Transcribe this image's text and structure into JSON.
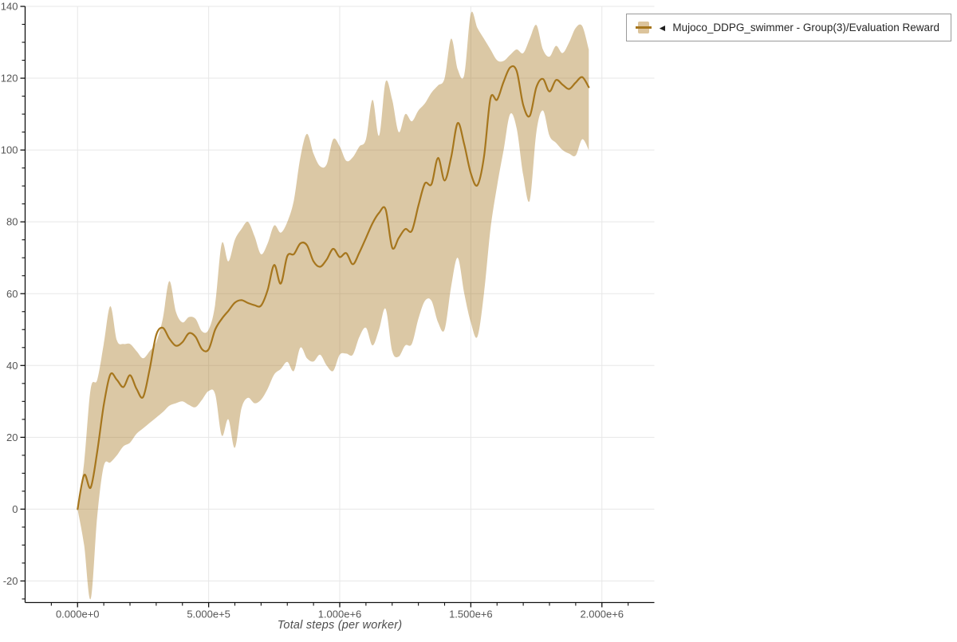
{
  "page": {
    "background": "#ffffff"
  },
  "legend": {
    "collapse_glyph": "◄",
    "series_label": "Mujoco_DDPG_swimmer - Group(3)/Evaluation Reward"
  },
  "chart_data": {
    "type": "line",
    "title": "",
    "xlabel": "Total steps (per worker)",
    "ylabel": "",
    "legend_position": "top-right",
    "grid": true,
    "series_name": "Mujoco_DDPG_swimmer - Group(3)/Evaluation Reward",
    "band_meaning": "min-max range across group of 3 runs",
    "x": [
      0,
      25000,
      50000,
      75000,
      100000,
      125000,
      150000,
      175000,
      200000,
      225000,
      250000,
      275000,
      300000,
      325000,
      350000,
      375000,
      400000,
      425000,
      450000,
      475000,
      500000,
      525000,
      550000,
      575000,
      600000,
      625000,
      650000,
      675000,
      700000,
      725000,
      750000,
      775000,
      800000,
      825000,
      850000,
      875000,
      900000,
      925000,
      950000,
      975000,
      1000000,
      1025000,
      1050000,
      1075000,
      1100000,
      1125000,
      1150000,
      1175000,
      1200000,
      1225000,
      1250000,
      1275000,
      1300000,
      1325000,
      1350000,
      1375000,
      1400000,
      1425000,
      1450000,
      1475000,
      1500000,
      1525000,
      1550000,
      1575000,
      1600000,
      1625000,
      1650000,
      1675000,
      1700000,
      1725000,
      1750000,
      1775000,
      1800000,
      1825000,
      1850000,
      1875000,
      1900000,
      1925000,
      1950000
    ],
    "series": [
      {
        "name": "mean",
        "values": [
          0,
          9.5,
          6,
          16,
          29,
          37.5,
          36,
          34,
          37.3,
          33.5,
          31.2,
          39,
          48.5,
          50.5,
          47.5,
          45.5,
          46.5,
          49,
          48,
          44.5,
          44.5,
          50,
          53,
          55.2,
          57.5,
          58.2,
          57.4,
          56.8,
          56.7,
          61,
          68,
          62.8,
          70.5,
          71,
          74,
          73.5,
          69,
          67.5,
          69.5,
          72.5,
          70.2,
          71.3,
          68.2,
          71.5,
          75.5,
          79.6,
          82.5,
          83.5,
          72.8,
          75.5,
          78,
          77.5,
          84.5,
          90.7,
          90.5,
          97.8,
          91.5,
          98,
          107.5,
          101.5,
          93.5,
          90.2,
          98,
          114.4,
          114,
          119,
          123,
          122,
          112.5,
          109.5,
          117.5,
          119.8,
          116.3,
          119.5,
          118.2,
          117,
          118.8,
          120.3,
          117.5
        ]
      },
      {
        "name": "band_low",
        "values": [
          0,
          -10,
          -25,
          -2,
          12,
          13,
          15,
          17.5,
          18.5,
          21,
          22.5,
          24,
          25.5,
          27,
          28.8,
          29.5,
          30,
          29,
          28.4,
          30.5,
          32.9,
          32,
          20.5,
          25,
          17.1,
          28,
          31,
          29.5,
          30.5,
          33.5,
          37.5,
          39,
          41,
          38.5,
          45,
          42,
          41.1,
          43,
          40,
          38.5,
          43,
          43.3,
          43,
          48,
          50.5,
          45.6,
          50,
          55.8,
          44,
          42.5,
          45.6,
          46,
          53,
          58,
          58,
          52,
          50,
          62,
          70,
          60,
          52,
          48,
          60,
          78,
          90,
          100,
          110,
          106,
          93,
          86,
          105,
          111,
          104,
          102,
          100,
          99,
          98.5,
          103,
          100
        ]
      },
      {
        "name": "band_high",
        "values": [
          0,
          13,
          33.5,
          36,
          46,
          56.5,
          47,
          46,
          46,
          44,
          42,
          44,
          46.5,
          53,
          63.5,
          55,
          52,
          53.5,
          53,
          49.5,
          50,
          57,
          74,
          69,
          75,
          78,
          80,
          76,
          71,
          74,
          79,
          77,
          80,
          86,
          98,
          104.5,
          99,
          95.5,
          96,
          103,
          101,
          97,
          98,
          101,
          103,
          114,
          104,
          119,
          114,
          105,
          110,
          108,
          111,
          113,
          116,
          118,
          120,
          131,
          122.5,
          121,
          138,
          134,
          131,
          128,
          125,
          124.8,
          126.5,
          128,
          127,
          131,
          134.8,
          128,
          126,
          129,
          127,
          130,
          134,
          134.5,
          128
        ]
      }
    ],
    "x_axis": {
      "domain": [
        -200000,
        2200000
      ],
      "major_ticks": [
        0,
        500000,
        1000000,
        1500000,
        2000000
      ],
      "major_tick_labels": [
        "0.000e+0",
        "5.000e+5",
        "1.000e+6",
        "1.500e+6",
        "2.000e+6"
      ],
      "minor_tick_step": 100000
    },
    "y_axis": {
      "domain": [
        -26,
        140
      ],
      "major_ticks": [
        -20,
        0,
        20,
        40,
        60,
        80,
        100,
        120,
        140
      ],
      "major_tick_labels": [
        "-20",
        "0",
        "20",
        "40",
        "60",
        "80",
        "100",
        "120",
        "140"
      ],
      "minor_tick_step": 5
    },
    "colors": {
      "line": "#a6761d",
      "band": "rgba(166,118,29,0.40)",
      "band_solid": "#dcc49c",
      "grid": "#e7e7e7",
      "axis": "#111111",
      "tick_label": "#555555",
      "axis_title": "#4d4d4d",
      "legend_border": "#9a9a9a",
      "legend_text": "#262626"
    }
  }
}
